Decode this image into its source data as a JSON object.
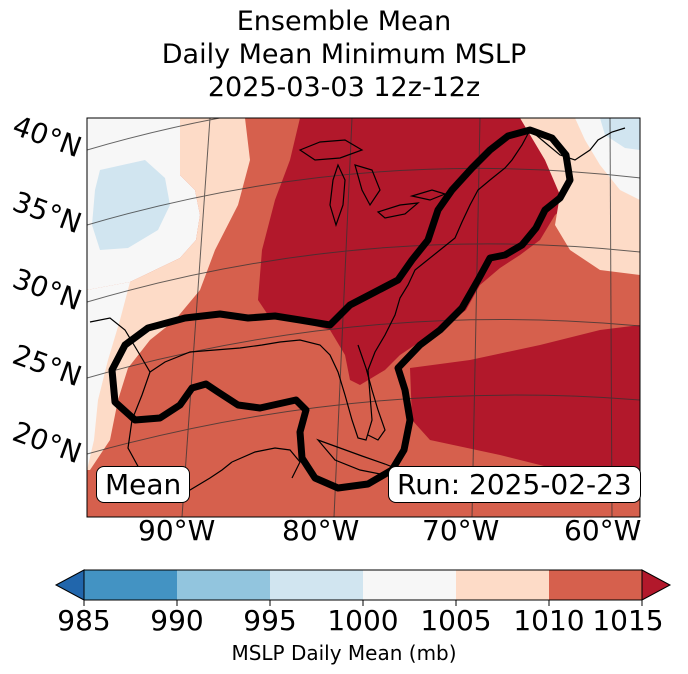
{
  "title": {
    "line1": "Ensemble Mean",
    "line2": "Daily Mean Minimum MSLP",
    "line3": "2025-03-03 12z-12z"
  },
  "map": {
    "lat_labels": [
      "40°N",
      "35°N",
      "30°N",
      "25°N",
      "20°N"
    ],
    "lon_labels": [
      "90°W",
      "80°W",
      "70°W",
      "60°W"
    ],
    "mean_label": "Mean",
    "run_label": "Run: 2025-02-23"
  },
  "colorbar": {
    "ticks": [
      "985",
      "990",
      "995",
      "1000",
      "1005",
      "1010",
      "1015"
    ],
    "label": "MSLP Daily Mean (mb)",
    "bins": [
      {
        "range": "<985",
        "color": "#2166ac"
      },
      {
        "range": "985-990",
        "color": "#4393c3"
      },
      {
        "range": "990-995",
        "color": "#92c5de"
      },
      {
        "range": "995-1000",
        "color": "#d1e5f0"
      },
      {
        "range": "1000-1005",
        "color": "#f7f7f7"
      },
      {
        "range": "1005-1010",
        "color": "#fddbc7"
      },
      {
        "range": "1010-1015",
        "color": "#d6604d"
      },
      {
        "range": ">1015",
        "color": "#b2182b"
      }
    ]
  }
}
